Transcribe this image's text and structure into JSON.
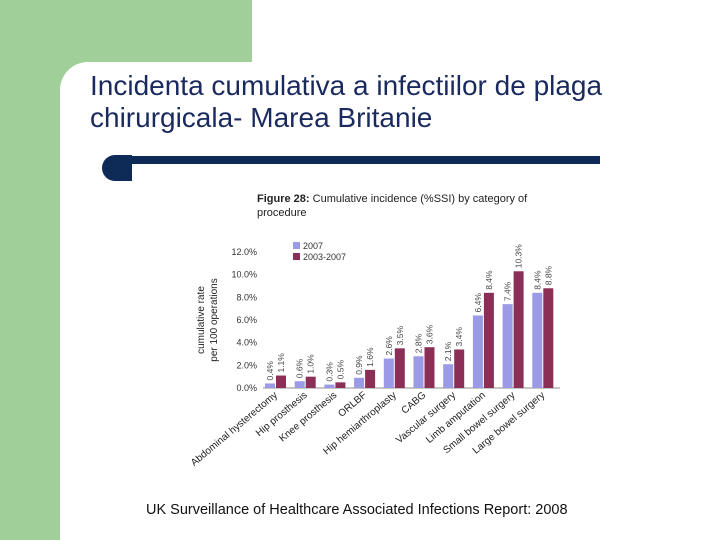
{
  "slide": {
    "title": "Incidenta cumulativa a infectiilor de plaga chirurgicala- Marea Britanie",
    "source": "UK Surveillance of Healthcare Associated Infections Report: 2008"
  },
  "figure": {
    "label": "Figure 28:",
    "caption": " Cumulative incidence (%SSI) by category of procedure"
  },
  "colors": {
    "background_strip": "#a0cf9a",
    "rule": "#0e2a57",
    "title_text": "#1a2a5e"
  },
  "chart_data": {
    "type": "bar",
    "title": "Figure 28: Cumulative incidence (%SSI) by category of procedure",
    "ylabel": "cumulative rate per 100 operations",
    "xlabel": "",
    "ylim": [
      0,
      12
    ],
    "yticks": [
      "0.0%",
      "2.0%",
      "4.0%",
      "6.0%",
      "8.0%",
      "10.0%",
      "12.0%"
    ],
    "grid": false,
    "legend_position": "top-left",
    "categories": [
      "Abdominal hysterectomy",
      "Hip prosthesis",
      "Knee prosthesis",
      "ORLBF",
      "Hip hemiarthroplasty",
      "CABG",
      "Vascular surgery",
      "Limb amputation",
      "Small bowel surgery",
      "Large bowel surgery"
    ],
    "series": [
      {
        "name": "2007",
        "color": "#9a9ae6",
        "values": [
          0.4,
          0.6,
          0.3,
          0.9,
          2.6,
          2.8,
          2.1,
          6.4,
          7.4,
          8.4
        ],
        "labels": [
          "0.4%",
          "0.6%",
          "0.3%",
          "0.9%",
          "2.6%",
          "2.8%",
          "2.1%",
          "6.4%",
          "7.4%",
          "8.4%"
        ]
      },
      {
        "name": "2003-2007",
        "color": "#8b2f56",
        "values": [
          1.1,
          1.0,
          0.5,
          1.6,
          3.5,
          3.6,
          3.4,
          8.4,
          10.3,
          8.8
        ],
        "labels": [
          "1.1%",
          "1.0%",
          "0.5%",
          "1.6%",
          "3.5%",
          "3.6%",
          "3.4%",
          "8.4%",
          "10.3%",
          "8.8%"
        ]
      }
    ]
  }
}
